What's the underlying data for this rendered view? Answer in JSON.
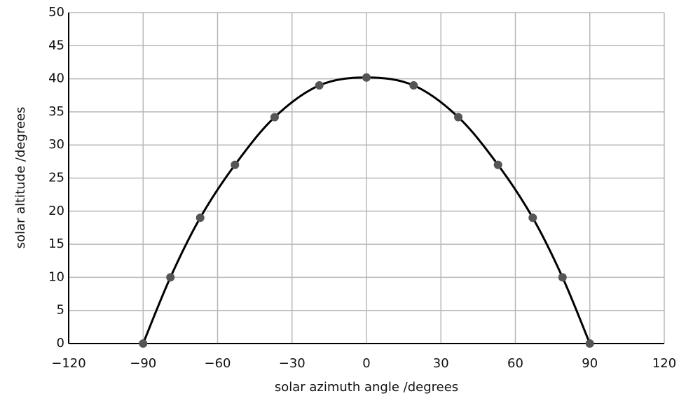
{
  "chart_data": {
    "type": "line",
    "x_label": "solar azimuth angle /degrees",
    "y_label": "solar altitude /degrees",
    "x": [
      -90,
      -79,
      -67,
      -53,
      -37,
      -19,
      0,
      19,
      37,
      53,
      67,
      79,
      90
    ],
    "series": [
      {
        "values": [
          0,
          10,
          19,
          27,
          34.2,
          39,
          40.2,
          39,
          34.2,
          27,
          19,
          10,
          0
        ],
        "color": "#000000",
        "marker_color": "#555555"
      }
    ],
    "xlim": [
      -120,
      120
    ],
    "ylim": [
      0,
      50
    ],
    "xticks": [
      {
        "value": -120,
        "label": "−120"
      },
      {
        "value": -90,
        "label": "−90"
      },
      {
        "value": -60,
        "label": "−60"
      },
      {
        "value": -30,
        "label": "−30"
      },
      0,
      30,
      60,
      90,
      120
    ],
    "yticks": [
      0,
      5,
      10,
      15,
      20,
      25,
      30,
      35,
      40,
      45,
      50
    ],
    "grid": true,
    "smooth": true
  }
}
